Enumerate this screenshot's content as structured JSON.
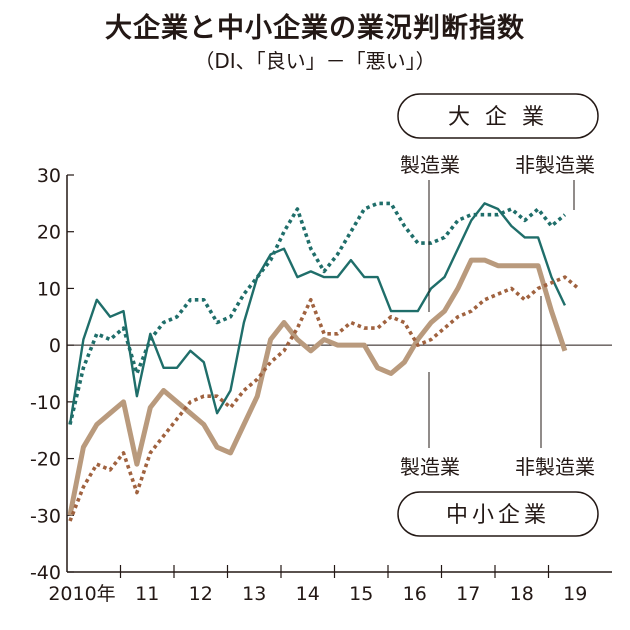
{
  "title": "大企業と中小企業の業況判断指数",
  "subtitle": "（DI、「良い」－「悪い」）",
  "colors": {
    "large_company": "#1f6e6a",
    "sme": "#b99a7d",
    "sme_nonmfg": "#a0623f",
    "axis": "#231815"
  },
  "chart_data": {
    "type": "line",
    "title": "大企業と中小企業の業況判断指数",
    "subtitle": "（DI、「良い」－「悪い」）",
    "xlabel": "",
    "ylabel": "",
    "ylim": [
      -40,
      30
    ],
    "yticks": [
      "30",
      "20",
      "10",
      "0",
      "-10",
      "-20",
      "-30",
      "-40"
    ],
    "ytick_values": [
      30,
      20,
      10,
      0,
      -10,
      -20,
      -30,
      -40
    ],
    "xticks": [
      "2010年",
      "11",
      "12",
      "13",
      "14",
      "15",
      "16",
      "17",
      "18",
      "19"
    ],
    "x_start": 2010.0,
    "x_step": 0.25,
    "groups": [
      {
        "label": "大企業",
        "series": [
          {
            "name": "製造業",
            "style": "solid",
            "values": [
              -14,
              1,
              8,
              5,
              6,
              -9,
              2,
              -4,
              -4,
              -1,
              -3,
              -12,
              -8,
              4,
              12,
              16,
              17,
              12,
              13,
              12,
              12,
              15,
              12,
              12,
              6,
              6,
              6,
              10,
              12,
              17,
              22,
              25,
              24,
              21,
              19,
              19,
              12,
              7
            ]
          },
          {
            "name": "非製造業",
            "style": "dotted",
            "values": [
              -14,
              -4,
              2,
              1,
              3,
              -5,
              1,
              4,
              5,
              8,
              8,
              4,
              5,
              9,
              12,
              15,
              20,
              24,
              17,
              13,
              16,
              20,
              24,
              25,
              25,
              21,
              18,
              18,
              19,
              22,
              23,
              23,
              23,
              24,
              22,
              24,
              21,
              23
            ]
          }
        ]
      },
      {
        "label": "中小企業",
        "series": [
          {
            "name": "製造業",
            "style": "solid",
            "values": [
              -30,
              -18,
              -14,
              -12,
              -10,
              -21,
              -11,
              -8,
              -10,
              -12,
              -14,
              -18,
              -19,
              -14,
              -9,
              1,
              4,
              1,
              -1,
              1,
              0,
              0,
              0,
              -4,
              -5,
              -3,
              1,
              4,
              6,
              10,
              15,
              15,
              14,
              14,
              14,
              14,
              6,
              -1
            ]
          },
          {
            "name": "非製造業",
            "style": "dotted",
            "values": [
              -31,
              -25,
              -21,
              -22,
              -19,
              -26,
              -19,
              -16,
              -13,
              -10,
              -9,
              -9,
              -11,
              -8,
              -6,
              -3,
              -1,
              3,
              8,
              2,
              2,
              4,
              3,
              3,
              5,
              4,
              0,
              1,
              3,
              5,
              6,
              8,
              9,
              10,
              8,
              10,
              11,
              12,
              10
            ]
          }
        ]
      }
    ],
    "annotations": {
      "large_box": "大 企 業",
      "sme_box": "中小企業",
      "large_mfg": "製造業",
      "large_nonmfg": "非製造業",
      "sme_mfg": "製造業",
      "sme_nonmfg": "非製造業"
    }
  }
}
